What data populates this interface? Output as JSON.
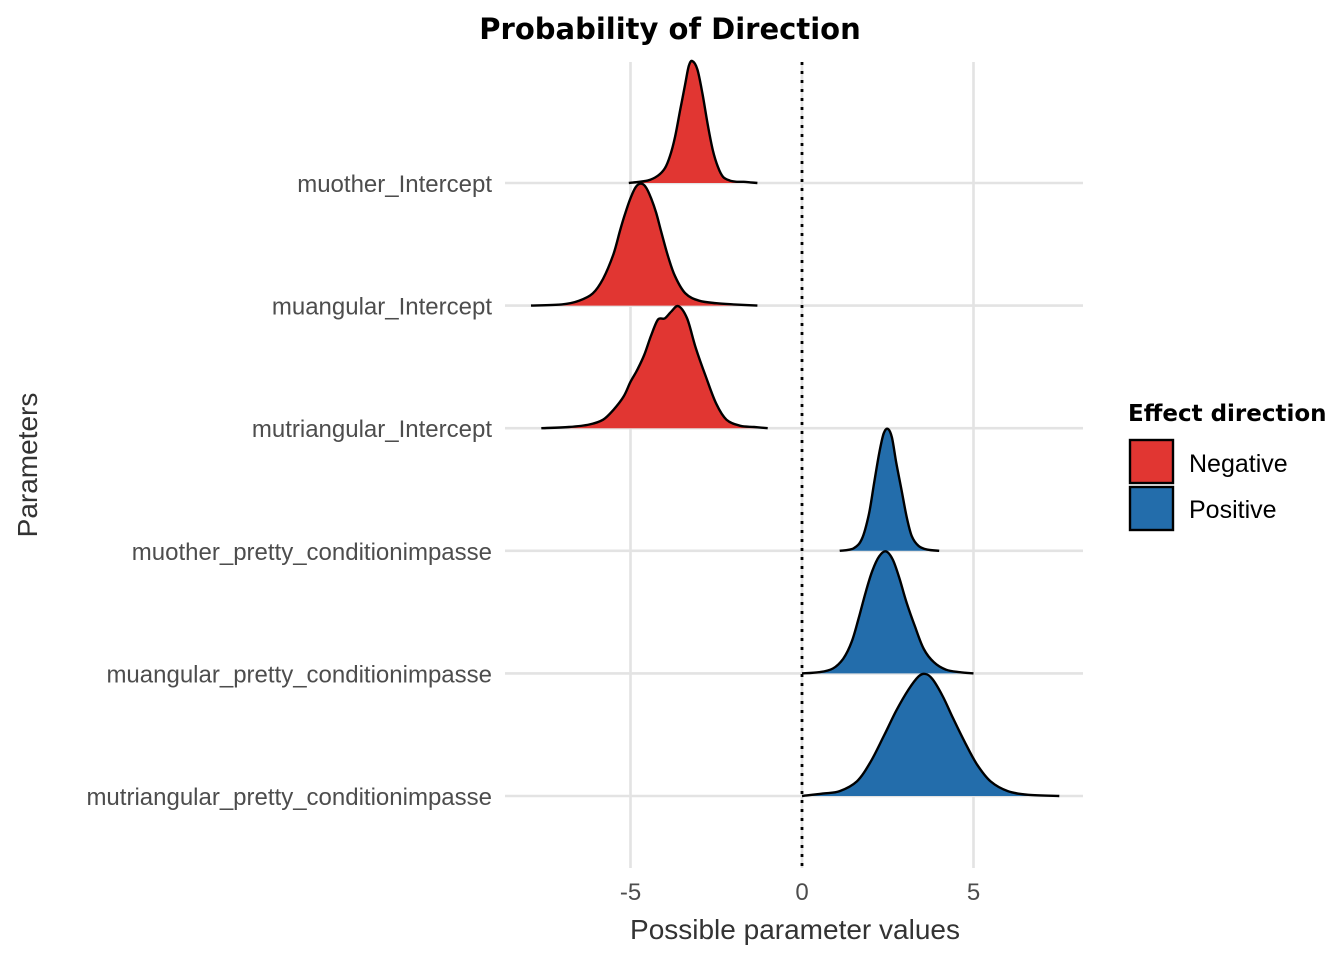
{
  "chart_data": {
    "type": "ridgeline",
    "title": "Probability of Direction",
    "xlabel": "Possible parameter values",
    "ylabel": "Parameters",
    "xlim": [
      -8.5,
      8.2
    ],
    "xticks": [
      -5,
      0,
      5
    ],
    "xtick_labels": [
      "-5",
      "0",
      "5"
    ],
    "reference_line": {
      "x": 0,
      "style": "dotted"
    },
    "grid": true,
    "legend": {
      "title": "Effect direction",
      "placement": "right",
      "entries": [
        {
          "label": "Negative",
          "color": "#E13632"
        },
        {
          "label": "Positive",
          "color": "#236DAB"
        }
      ]
    },
    "series": [
      {
        "name": "muother_Intercept",
        "direction": "Negative",
        "x": [
          -5.05,
          -4.5,
          -4.2,
          -4.0,
          -3.85,
          -3.7,
          -3.55,
          -3.4,
          -3.3,
          -3.2,
          -3.05,
          -2.9,
          -2.75,
          -2.6,
          -2.45,
          -2.3,
          -2.1,
          -1.9,
          -1.7,
          -1.5,
          -1.3
        ],
        "density": [
          0,
          0.02,
          0.06,
          0.12,
          0.22,
          0.38,
          0.6,
          0.82,
          0.96,
          1.0,
          0.93,
          0.73,
          0.48,
          0.27,
          0.13,
          0.05,
          0.02,
          0.01,
          0.01,
          0.005,
          0
        ]
      },
      {
        "name": "muangular_Intercept",
        "direction": "Negative",
        "x": [
          -7.9,
          -7.0,
          -6.5,
          -6.1,
          -5.8,
          -5.5,
          -5.3,
          -5.15,
          -5.0,
          -4.85,
          -4.7,
          -4.55,
          -4.4,
          -4.25,
          -4.1,
          -3.9,
          -3.7,
          -3.4,
          -3.0,
          -2.5,
          -2.0,
          -1.3
        ],
        "density": [
          0,
          0.01,
          0.04,
          0.1,
          0.22,
          0.42,
          0.62,
          0.76,
          0.88,
          0.97,
          1.0,
          0.97,
          0.88,
          0.76,
          0.6,
          0.4,
          0.24,
          0.1,
          0.04,
          0.02,
          0.01,
          0
        ]
      },
      {
        "name": "mutriangular_Intercept",
        "direction": "Negative",
        "x": [
          -7.6,
          -6.8,
          -6.2,
          -5.8,
          -5.5,
          -5.2,
          -5.0,
          -4.8,
          -4.6,
          -4.4,
          -4.2,
          -4.0,
          -3.8,
          -3.6,
          -3.35,
          -3.1,
          -2.8,
          -2.5,
          -2.2,
          -1.8,
          -1.4,
          -1.0
        ],
        "density": [
          0,
          0.01,
          0.03,
          0.07,
          0.15,
          0.26,
          0.38,
          0.48,
          0.6,
          0.76,
          0.89,
          0.9,
          0.96,
          1.0,
          0.9,
          0.66,
          0.42,
          0.2,
          0.07,
          0.02,
          0.01,
          0
        ]
      },
      {
        "name": "muother_pretty_conditionimpasse",
        "direction": "Positive",
        "x": [
          1.1,
          1.5,
          1.75,
          1.95,
          2.1,
          2.25,
          2.38,
          2.5,
          2.62,
          2.75,
          2.9,
          3.05,
          3.2,
          3.4,
          3.65,
          4.0
        ],
        "density": [
          0,
          0.02,
          0.1,
          0.3,
          0.55,
          0.8,
          0.96,
          1.0,
          0.93,
          0.72,
          0.5,
          0.28,
          0.12,
          0.04,
          0.01,
          0
        ]
      },
      {
        "name": "muangular_pretty_conditionimpasse",
        "direction": "Positive",
        "x": [
          0,
          0.5,
          0.9,
          1.2,
          1.45,
          1.65,
          1.85,
          2.05,
          2.25,
          2.45,
          2.65,
          2.85,
          3.05,
          3.3,
          3.55,
          3.85,
          4.2,
          4.6,
          5.0
        ],
        "density": [
          0,
          0.01,
          0.04,
          0.12,
          0.26,
          0.45,
          0.66,
          0.84,
          0.96,
          1.0,
          0.93,
          0.77,
          0.58,
          0.38,
          0.2,
          0.09,
          0.03,
          0.01,
          0
        ]
      },
      {
        "name": "mutriangular_pretty_conditionimpasse",
        "direction": "Positive",
        "x": [
          0,
          0.6,
          1.1,
          1.6,
          2.0,
          2.4,
          2.75,
          3.1,
          3.4,
          3.6,
          3.8,
          4.1,
          4.4,
          4.75,
          5.1,
          5.5,
          6.0,
          6.6,
          7.5
        ],
        "density": [
          0,
          0.02,
          0.04,
          0.12,
          0.28,
          0.5,
          0.7,
          0.87,
          0.98,
          1.0,
          0.96,
          0.82,
          0.64,
          0.44,
          0.26,
          0.12,
          0.04,
          0.01,
          0
        ]
      }
    ]
  }
}
